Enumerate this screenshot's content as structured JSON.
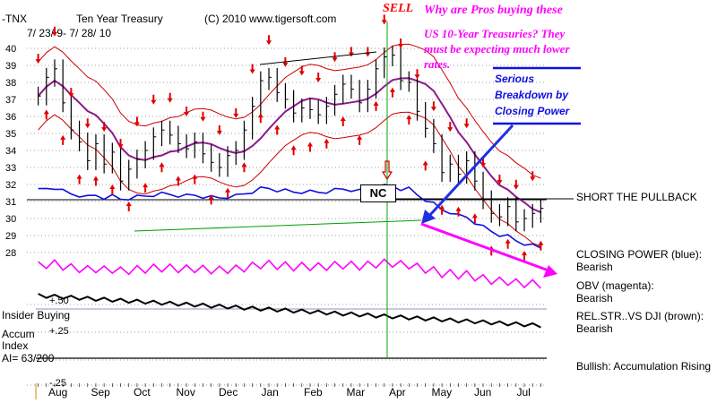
{
  "header": {
    "ticker": "-TNX",
    "title": "Ten Year Treasury",
    "copyright": "(C) 2010 www.tigersoft.com",
    "date_range": "7/ 23/ 9- 7/ 28/ 10"
  },
  "annotations": {
    "sell": "SELL",
    "question_line1": "Why are Pros buying  these",
    "question_line2": "US 10-Year Treasuries?  They",
    "question_line3": "must be expecting much  lower",
    "question_line4": "rates.",
    "breakdown_line1": "Serious",
    "breakdown_line2": "Breakdown by",
    "breakdown_line3": "Closing Power",
    "nc": "NC",
    "short_pullback": "SHORT THE PULLBACK",
    "closing_power_title": "CLOSING POWER (blue):",
    "closing_power_status": "Bearish",
    "obv_title": "OBV (magenta):",
    "obv_status": "Bearish",
    "relstr_title": "REL.STR..VS DJI (brown):",
    "relstr_status": "Bearish",
    "accumulation": "Bullish: Accumulation Rising",
    "insider_buying": "Insider Buying",
    "accum_line1": "Accum",
    "accum_line2": "Index",
    "ai_value": "AI= 63/200",
    "level_plus50": "+.50",
    "level_plus25": "+.25",
    "level_minus25": "-.25"
  },
  "colors": {
    "closing_power": "#1010e0",
    "obv": "#ff00ff",
    "rel_strength": "#000000",
    "bands": "#cc0000",
    "moving_average": "#8b1a8b",
    "sell_marker": "#00aa00",
    "question_text": "#ff00ff",
    "breakdown_text": "#1010e0",
    "sell_text": "#ff0000"
  },
  "chart_data": {
    "type": "line",
    "y_ticks": [
      40,
      39,
      38,
      37,
      36,
      35,
      34,
      33,
      32,
      31,
      30,
      29,
      28
    ],
    "ylim": [
      27.5,
      41
    ],
    "x_labels": [
      "Aug",
      "Sep",
      "Oct",
      "Nov",
      "Dec",
      "Jan",
      "Feb",
      "Mar",
      "Apr",
      "May",
      "Jun",
      "Jul"
    ],
    "grid": true,
    "series": [
      {
        "name": "Ten Year Treasury",
        "values": [
          37.2,
          38.3,
          38.8,
          36.8,
          35.2,
          34.5,
          33.4,
          34.4,
          33.2,
          33.9,
          32.2,
          32.9,
          33.5,
          34.0,
          34.8,
          35.2,
          34.9,
          34.4,
          34.1,
          34.5,
          33.8,
          33.3,
          33.0,
          33.7,
          34.0,
          35.2,
          36.6,
          38.1,
          38.3,
          37.4,
          37.0,
          36.2,
          36.5,
          36.4,
          36.1,
          36.6,
          37.3,
          37.9,
          37.6,
          36.8,
          37.6,
          38.8,
          39.5,
          39.6,
          38.1,
          38.0,
          36.3,
          35.3,
          34.4,
          32.7,
          33.2,
          32.6,
          33.4,
          32.2,
          31.1,
          30.3,
          30.1,
          30.7,
          29.8,
          30.0,
          30.3,
          30.6
        ]
      }
    ],
    "indicators": [
      "CLOSING POWER (blue)",
      "OBV (magenta)",
      "REL.STR..VS DJI (brown)"
    ],
    "accum_levels": [
      0.5,
      0.25,
      -0.25
    ]
  }
}
